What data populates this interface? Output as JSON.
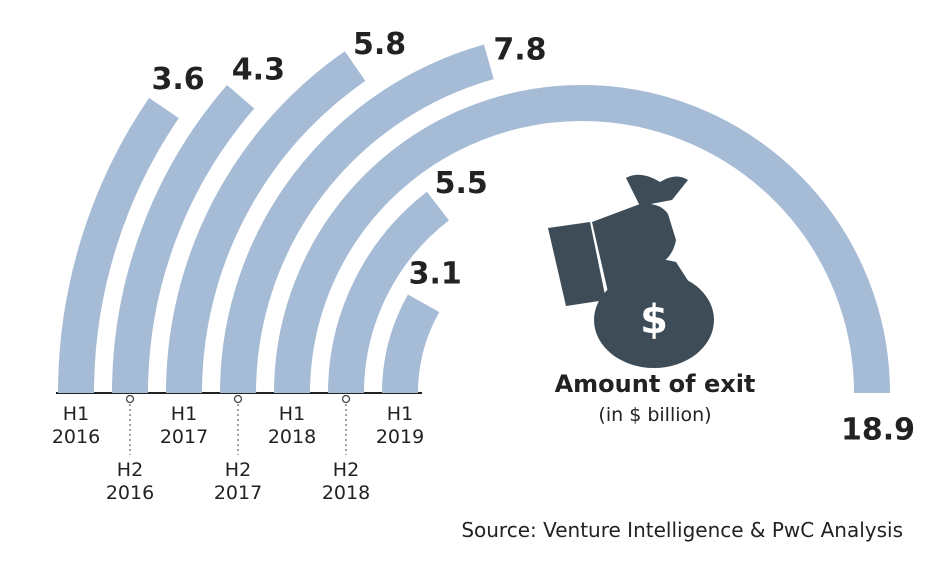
{
  "chart_data": {
    "type": "radial-bar",
    "title": "Amount of exit",
    "subtitle": "(in $ billion)",
    "source": "Source: Venture Intelligence & PwC Analysis",
    "icon_symbol": "$",
    "categories": [
      "H1\n2016",
      "H2\n2016",
      "H1\n2017",
      "H2\n2017",
      "H1\n2018",
      "H2\n2018",
      "H1\n2019"
    ],
    "values": [
      3.6,
      4.3,
      5.8,
      7.8,
      18.9,
      5.5,
      3.1
    ],
    "color": "#a6bcd6",
    "max": 18.9
  }
}
